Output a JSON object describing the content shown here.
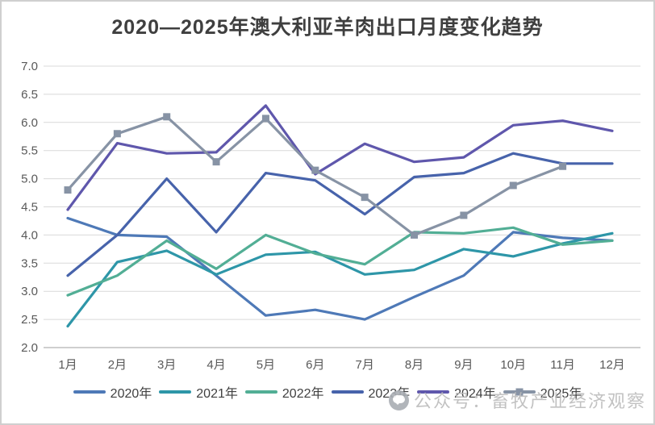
{
  "title": "2020—2025年澳大利亚羊肉出口月度变化趋势",
  "watermark": {
    "icon": "wechat-icon",
    "text": "公众号：畜牧产业经济观察"
  },
  "colors": {
    "grid": "#d9d9d9",
    "axis_line": "#bfbfbf",
    "tick_label": "#595959",
    "title_text": "#3f3f3f",
    "watermark_text": "#bcbcbc"
  },
  "chart_data": {
    "type": "line",
    "title": "2020—2025年澳大利亚羊肉出口月度变化趋势",
    "xlabel": "",
    "ylabel": "",
    "ylim": [
      2.0,
      7.0
    ],
    "y_ticks": [
      7.0,
      6.5,
      6.0,
      5.5,
      5.0,
      4.5,
      4.0,
      3.5,
      3.0,
      2.5,
      2.0
    ],
    "grid": "horizontal",
    "legend_position": "bottom",
    "categories": [
      "1月",
      "2月",
      "3月",
      "4月",
      "5月",
      "6月",
      "7月",
      "8月",
      "9月",
      "10月",
      "11月",
      "12月"
    ],
    "series": [
      {
        "name": "2020年",
        "color": "#4e79b7",
        "marker": "none",
        "values": [
          4.3,
          4.0,
          3.97,
          3.28,
          2.57,
          2.67,
          2.5,
          2.9,
          3.28,
          4.05,
          3.95,
          3.9
        ]
      },
      {
        "name": "2021年",
        "color": "#2e96a8",
        "marker": "none",
        "values": [
          2.38,
          3.52,
          3.72,
          3.3,
          3.65,
          3.7,
          3.3,
          3.38,
          3.75,
          3.62,
          3.85,
          4.03
        ]
      },
      {
        "name": "2022年",
        "color": "#52ae95",
        "marker": "none",
        "values": [
          2.93,
          3.28,
          3.9,
          3.4,
          4.0,
          3.67,
          3.48,
          4.05,
          4.03,
          4.13,
          3.83,
          3.9
        ]
      },
      {
        "name": "2023年",
        "color": "#4763ab",
        "marker": "none",
        "values": [
          3.28,
          4.0,
          5.0,
          4.05,
          5.1,
          4.97,
          4.37,
          5.03,
          5.1,
          5.45,
          5.27,
          5.27
        ]
      },
      {
        "name": "2024年",
        "color": "#5f57ac",
        "marker": "none",
        "values": [
          4.45,
          5.63,
          5.45,
          5.47,
          6.3,
          5.08,
          5.62,
          5.3,
          5.38,
          5.95,
          6.03,
          5.85
        ]
      },
      {
        "name": "2025年",
        "color": "#8793a5",
        "marker": "square",
        "values": [
          4.8,
          5.8,
          6.1,
          5.3,
          6.07,
          5.15,
          4.67,
          4.0,
          4.35,
          4.88,
          5.22
        ]
      }
    ]
  }
}
